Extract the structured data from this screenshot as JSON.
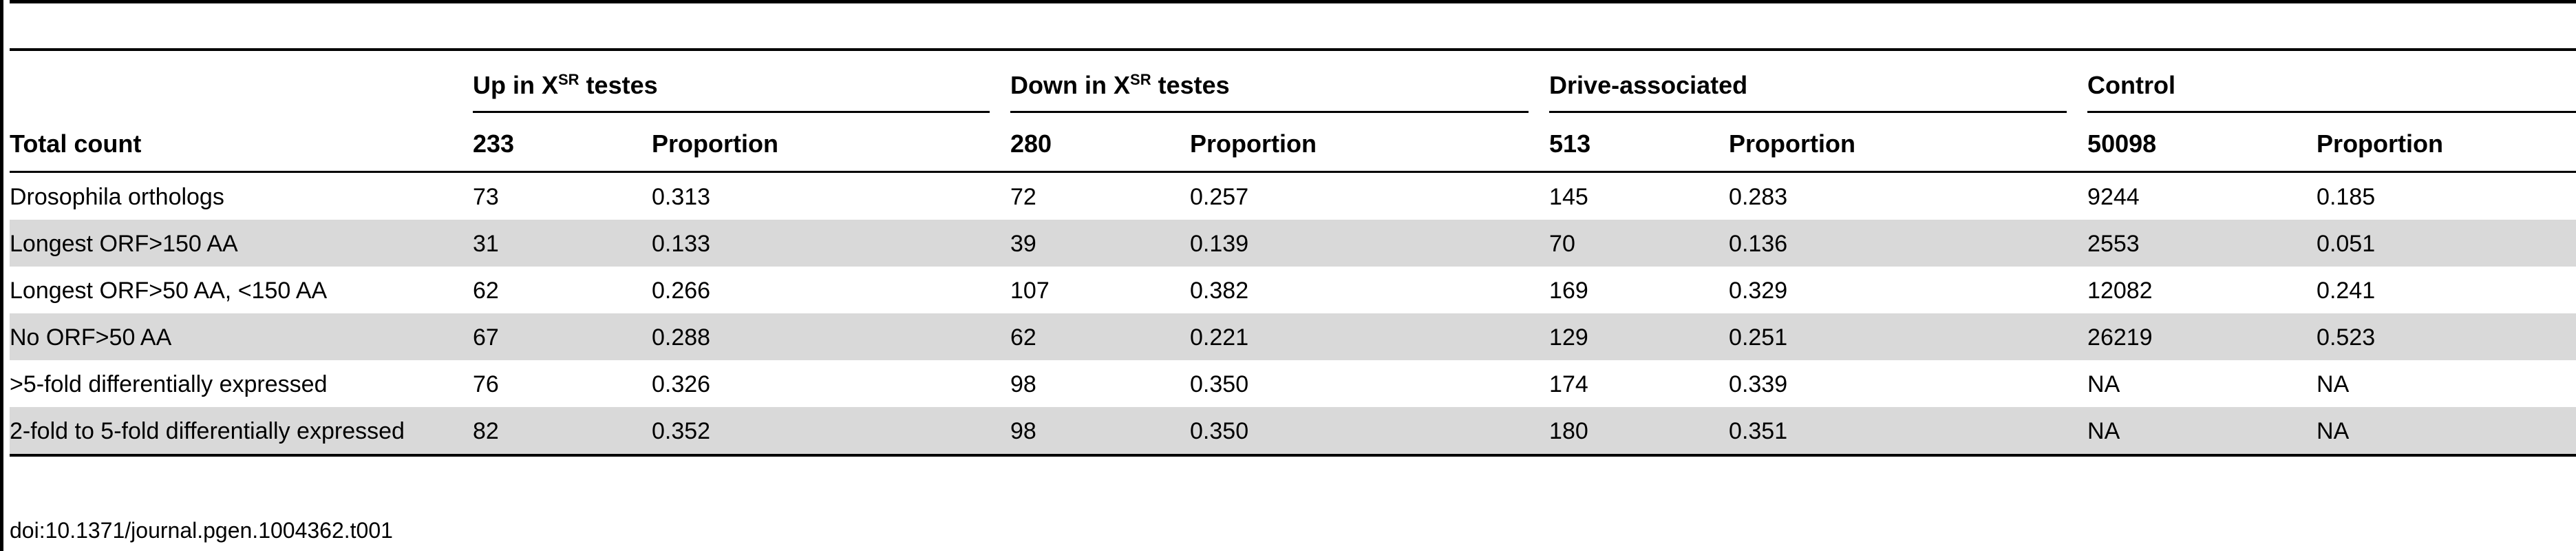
{
  "column_groups": [
    {
      "label": "Up in X",
      "sup": "SR",
      "suffix": " testes"
    },
    {
      "label": "Down in X",
      "sup": "SR",
      "suffix": " testes"
    },
    {
      "label": "Drive-associated",
      "sup": "",
      "suffix": ""
    },
    {
      "label": "Control",
      "sup": "",
      "suffix": ""
    }
  ],
  "count_row": {
    "label": "Total count",
    "counts": [
      "233",
      "280",
      "513",
      "50098"
    ],
    "proportion_label": "Proportion"
  },
  "rows": [
    {
      "label": "Drosophila orthologs",
      "values": [
        "73",
        "0.313",
        "72",
        "0.257",
        "145",
        "0.283",
        "9244",
        "0.185"
      ]
    },
    {
      "label": "Longest ORF>150 AA",
      "values": [
        "31",
        "0.133",
        "39",
        "0.139",
        "70",
        "0.136",
        "2553",
        "0.051"
      ]
    },
    {
      "label": "Longest ORF>50 AA, <150 AA",
      "values": [
        "62",
        "0.266",
        "107",
        "0.382",
        "169",
        "0.329",
        "12082",
        "0.241"
      ]
    },
    {
      "label": "No ORF>50 AA",
      "values": [
        "67",
        "0.288",
        "62",
        "0.221",
        "129",
        "0.251",
        "26219",
        "0.523"
      ]
    },
    {
      "label": ">5-fold differentially expressed",
      "values": [
        "76",
        "0.326",
        "98",
        "0.350",
        "174",
        "0.339",
        "NA",
        "NA"
      ]
    },
    {
      "label": "2-fold to 5-fold differentially expressed",
      "values": [
        "82",
        "0.352",
        "98",
        "0.350",
        "180",
        "0.351",
        "NA",
        "NA"
      ]
    }
  ],
  "doi": "doi:10.1371/journal.pgen.1004362.t001"
}
